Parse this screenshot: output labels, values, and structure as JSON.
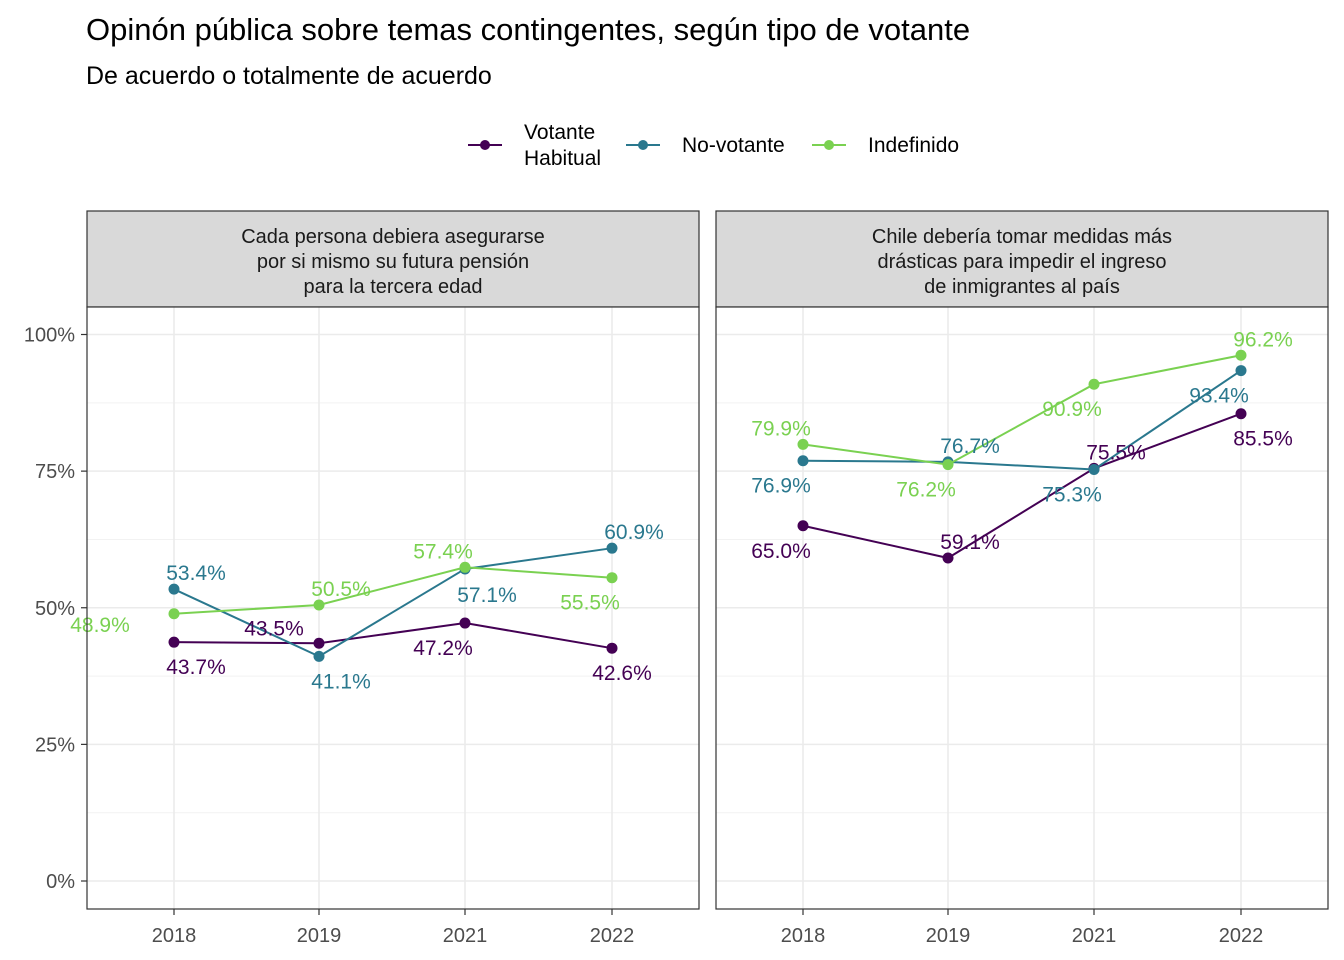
{
  "chart_data": {
    "type": "line",
    "title": "Opinón pública sobre temas contingentes, según tipo de votante",
    "subtitle": "De acuerdo o totalmente de acuerdo",
    "legend": {
      "position": "top",
      "entries": [
        {
          "name_lines": [
            "Votante",
            "Habitual"
          ],
          "color": "#440154"
        },
        {
          "name_lines": [
            "No-votante"
          ],
          "color": "#2A788E"
        },
        {
          "name_lines": [
            "Indefinido"
          ],
          "color": "#7AD151"
        }
      ]
    },
    "y_axis": {
      "ylim": [
        0,
        100
      ],
      "ticks": [
        0,
        25,
        50,
        75,
        100
      ],
      "tick_labels": [
        "0%",
        "25%",
        "50%",
        "75%",
        "100%"
      ]
    },
    "categories": [
      "2018",
      "2019",
      "2021",
      "2022"
    ],
    "grid": true,
    "panels": [
      {
        "strip_lines": [
          "Cada persona debiera asegurarse",
          "por si mismo su futura pensión",
          "para la tercera edad"
        ],
        "series": [
          {
            "name": "Votante Habitual",
            "color": "#440154",
            "values": [
              43.7,
              43.5,
              47.2,
              42.6
            ],
            "labels": [
              "43.7%",
              "43.5%",
              "47.2%",
              "42.6%"
            ]
          },
          {
            "name": "No-votante",
            "color": "#2A788E",
            "values": [
              53.4,
              41.1,
              57.1,
              60.9
            ],
            "labels": [
              "53.4%",
              "41.1%",
              "57.1%",
              "60.9%"
            ]
          },
          {
            "name": "Indefinido",
            "color": "#7AD151",
            "values": [
              48.9,
              50.5,
              57.4,
              55.5
            ],
            "labels": [
              "48.9%",
              "50.5%",
              "57.4%",
              "55.5%"
            ]
          }
        ]
      },
      {
        "strip_lines": [
          "Chile debería tomar medidas más",
          "drásticas para impedir el ingreso",
          "de inmigrantes al país"
        ],
        "series": [
          {
            "name": "Votante Habitual",
            "color": "#440154",
            "values": [
              65.0,
              59.1,
              75.5,
              85.5
            ],
            "labels": [
              "65.0%",
              "59.1%",
              "75.5%",
              "85.5%"
            ]
          },
          {
            "name": "No-votante",
            "color": "#2A788E",
            "values": [
              76.9,
              76.7,
              75.3,
              93.4
            ],
            "labels": [
              "76.9%",
              "76.7%",
              "75.3%",
              "93.4%"
            ]
          },
          {
            "name": "Indefinido",
            "color": "#7AD151",
            "values": [
              79.9,
              76.2,
              90.9,
              96.2
            ],
            "labels": [
              "79.9%",
              "76.2%",
              "90.9%",
              "96.2%"
            ]
          }
        ]
      }
    ]
  }
}
